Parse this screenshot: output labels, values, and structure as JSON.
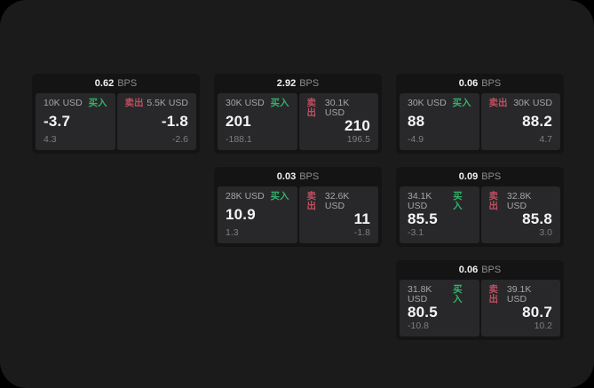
{
  "labels": {
    "bps": "BPS",
    "buy": "买入",
    "sell": "卖出"
  },
  "colors": {
    "background": "#000000",
    "panel": "#1b1b1c",
    "card": "#141415",
    "subcard": "#28282a",
    "buy_green": "#32b169",
    "sell_red": "#c04f60",
    "value_white": "#f5f5f5",
    "label_gray": "#a5a5a5",
    "delta_gray": "#7e7e7e"
  },
  "cards": [
    {
      "bps": "0.62",
      "buy": {
        "amount": "10K USD",
        "price": "-3.7",
        "delta": "4.3"
      },
      "sell": {
        "amount": "5.5K USD",
        "price": "-1.8",
        "delta": "-2.6"
      }
    },
    {
      "bps": "2.92",
      "buy": {
        "amount": "30K USD",
        "price": "201",
        "delta": "-188.1"
      },
      "sell": {
        "amount": "30.1K USD",
        "price": "210",
        "delta": "196.5"
      }
    },
    {
      "bps": "0.06",
      "buy": {
        "amount": "30K USD",
        "price": "88",
        "delta": "-4.9"
      },
      "sell": {
        "amount": "30K USD",
        "price": "88.2",
        "delta": "4.7"
      }
    },
    {
      "bps": "0.03",
      "buy": {
        "amount": "28K USD",
        "price": "10.9",
        "delta": "1.3"
      },
      "sell": {
        "amount": "32.6K USD",
        "price": "11",
        "delta": "-1.8"
      }
    },
    {
      "bps": "0.09",
      "buy": {
        "amount": "34.1K USD",
        "price": "85.5",
        "delta": "-3.1"
      },
      "sell": {
        "amount": "32.8K USD",
        "price": "85.8",
        "delta": "3.0"
      }
    },
    {
      "bps": "0.06",
      "buy": {
        "amount": "31.8K USD",
        "price": "80.5",
        "delta": "-10.8"
      },
      "sell": {
        "amount": "39.1K USD",
        "price": "80.7",
        "delta": "10.2"
      }
    }
  ]
}
